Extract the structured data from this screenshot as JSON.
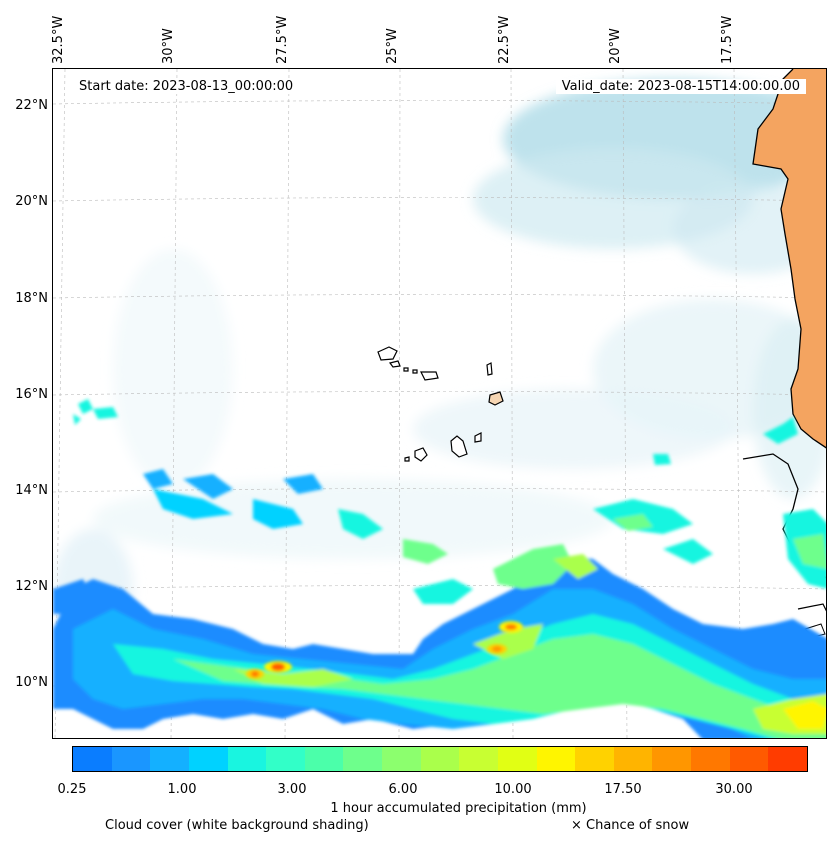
{
  "header": {
    "start_date": "Start date: 2023-08-13_00:00:00",
    "valid_date": "Valid_date: 2023-08-15T14:00:00.00"
  },
  "axes": {
    "longitudes": [
      "32.5°W",
      "30°W",
      "27.5°W",
      "25°W",
      "22.5°W",
      "20°W",
      "17.5°W"
    ],
    "latitudes": [
      "22°N",
      "20°N",
      "18°N",
      "16°N",
      "14°N",
      "12°N",
      "10°N"
    ]
  },
  "colorbar": {
    "ticks": [
      "0.25",
      "1.00",
      "3.00",
      "6.00",
      "10.00",
      "17.50",
      "30.00"
    ],
    "colors": [
      "#0a7dff",
      "#1a96ff",
      "#14b0ff",
      "#00d2ff",
      "#19f5e0",
      "#32ffc8",
      "#4bffaa",
      "#6eff8c",
      "#8cff6e",
      "#aaff4b",
      "#c8ff32",
      "#e1ff14",
      "#fff500",
      "#ffd200",
      "#ffb400",
      "#ff9600",
      "#ff7800",
      "#ff5a00",
      "#ff3c00"
    ],
    "title": "1 hour accumulated precipitation (mm)"
  },
  "notes": {
    "cloud": "Cloud cover (white background shading)",
    "snow": "× Chance of snow"
  },
  "colors": {
    "land": "#f4a460",
    "cloud": "#a8d8e6",
    "precip_low": "#1a8cff",
    "precip_mid": "#6eff8c",
    "precip_high": "#ff3c00"
  }
}
